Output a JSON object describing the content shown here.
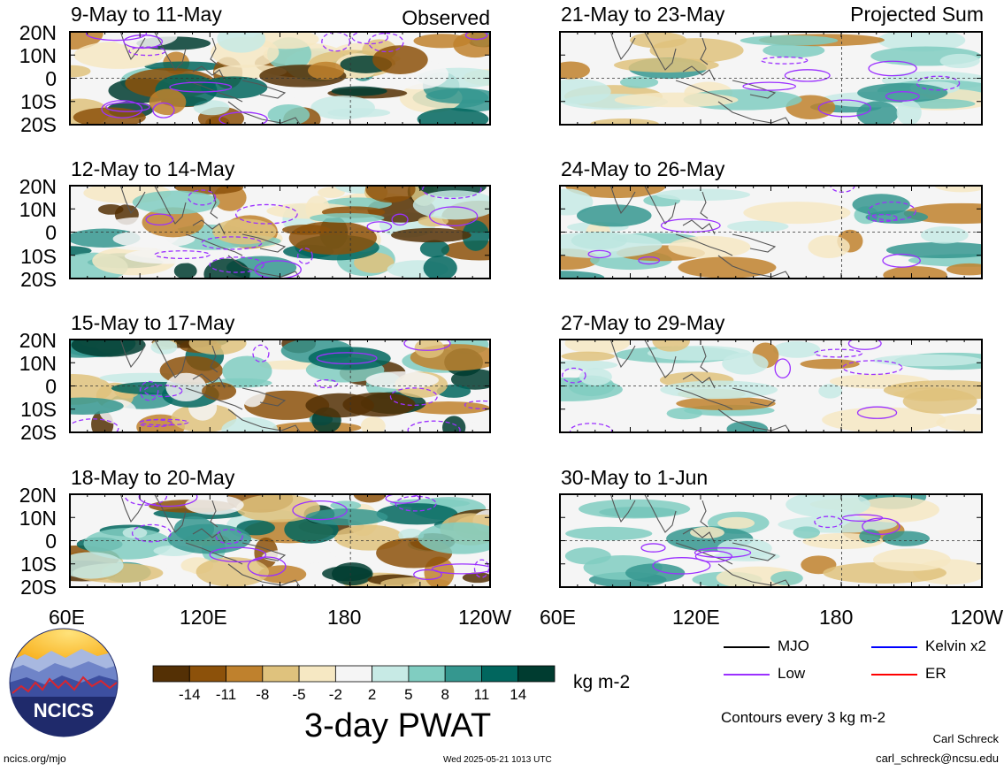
{
  "observed_label": "Observed",
  "projected_label": "Projected Sum",
  "panels_left": [
    "9-May to 11-May",
    "12-May to 14-May",
    "15-May to 17-May",
    "18-May to 20-May"
  ],
  "panels_right": [
    "21-May to 23-May",
    "24-May to 26-May",
    "27-May to 29-May",
    "30-May to 1-Jun"
  ],
  "lat_labels": [
    "20N",
    "10N",
    "0",
    "10S",
    "20S"
  ],
  "lon_labels": [
    "60E",
    "120E",
    "180",
    "120W"
  ],
  "colorbar": {
    "ticks": [
      "-14",
      "-11",
      "-8",
      "-5",
      "-2",
      "2",
      "5",
      "8",
      "11",
      "14"
    ],
    "colors": [
      "#543005",
      "#8c510a",
      "#bf812d",
      "#dfc27d",
      "#f6e8c3",
      "#f5f5f5",
      "#c7eae5",
      "#80cdc1",
      "#35978f",
      "#01665e",
      "#003c30"
    ],
    "units": "kg m-2",
    "title": "3-day PWAT"
  },
  "legend": {
    "items": [
      {
        "label": "MJO",
        "color": "#000000"
      },
      {
        "label": "Kelvin x2",
        "color": "#0000ff"
      },
      {
        "label": "Low",
        "color": "#9b30ff"
      },
      {
        "label": "ER",
        "color": "#ff0000"
      }
    ],
    "contour_note": "Contours every 3 kg m-2"
  },
  "logo_text": "NCICS",
  "footer": {
    "url": "ncics.org/mjo",
    "timestamp": "Wed 2025-05-21 1013 UTC",
    "author": "Carl Schreck",
    "email": "carl_schreck@ncsu.edu"
  }
}
